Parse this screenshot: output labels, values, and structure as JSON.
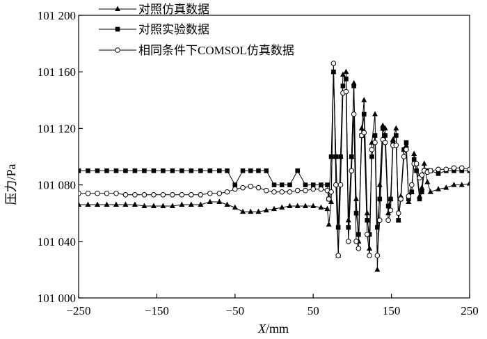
{
  "chart_data": {
    "type": "line",
    "title": "",
    "xlabel_italic": "X",
    "xlabel_unit": "/mm",
    "ylabel": "压力/Pa",
    "xlim": [
      -250,
      250
    ],
    "ylim": [
      101000,
      101200
    ],
    "xticks": [
      -250,
      -150,
      -50,
      50,
      150,
      250
    ],
    "xtick_labels": [
      "−250",
      "−150",
      "−50",
      "50",
      "150",
      "250"
    ],
    "yticks": [
      101000,
      101040,
      101080,
      101120,
      101160,
      101200
    ],
    "ytick_labels": [
      "101 000",
      "101 040",
      "101 080",
      "101 120",
      "101 160",
      "101 200"
    ],
    "grid": false,
    "legend_position": "top-left",
    "series": [
      {
        "name": "对照仿真数据",
        "marker": "triangle",
        "x": [
          -250,
          -238,
          -226,
          -214,
          -202,
          -190,
          -178,
          -166,
          -154,
          -142,
          -130,
          -118,
          -106,
          -94,
          -82,
          -70,
          -60,
          -50,
          -40,
          -30,
          -20,
          -10,
          0,
          10,
          20,
          30,
          40,
          50,
          60,
          68,
          70,
          73,
          76,
          79,
          82,
          85,
          88,
          92,
          95,
          99,
          102,
          105,
          108,
          112,
          115,
          119,
          122,
          125,
          129,
          132,
          135,
          139,
          142,
          146,
          149,
          152,
          156,
          159,
          162,
          166,
          169,
          172,
          176,
          179,
          182,
          186,
          189,
          192,
          196,
          200,
          210,
          220,
          230,
          240,
          250
        ],
        "y": [
          101066,
          101066,
          101066,
          101066,
          101066,
          101066,
          101066,
          101065,
          101065,
          101065,
          101065,
          101066,
          101066,
          101066,
          101068,
          101068,
          101066,
          101064,
          101061,
          101061,
          101061,
          101062,
          101063,
          101064,
          101065,
          101065,
          101065,
          101065,
          101064,
          101063,
          101052,
          101068,
          101160,
          101100,
          101030,
          101100,
          101158,
          101160,
          101055,
          101100,
          101152,
          101070,
          101040,
          101120,
          101140,
          101060,
          101035,
          101110,
          101130,
          101020,
          101080,
          101122,
          101120,
          101060,
          101070,
          101112,
          101120,
          101055,
          101072,
          101105,
          101108,
          101068,
          101075,
          101102,
          101095,
          101072,
          101078,
          101095,
          101082,
          101075,
          101077,
          101078,
          101080,
          101080,
          101081
        ]
      },
      {
        "name": "对照实验数据",
        "marker": "square",
        "x": [
          -250,
          -238,
          -226,
          -214,
          -202,
          -190,
          -178,
          -166,
          -154,
          -142,
          -130,
          -118,
          -106,
          -94,
          -82,
          -70,
          -60,
          -50,
          -40,
          -30,
          -20,
          -10,
          0,
          10,
          20,
          30,
          40,
          50,
          60,
          68,
          70,
          73,
          76,
          79,
          82,
          85,
          88,
          92,
          95,
          99,
          102,
          105,
          108,
          112,
          115,
          119,
          122,
          125,
          129,
          132,
          135,
          139,
          142,
          146,
          149,
          152,
          156,
          159,
          162,
          166,
          169,
          172,
          176,
          179,
          182,
          186,
          189,
          192,
          196,
          200,
          210,
          220,
          230,
          240,
          250
        ],
        "y": [
          101090,
          101090,
          101090,
          101090,
          101090,
          101090,
          101090,
          101090,
          101090,
          101090,
          101090,
          101090,
          101090,
          101090,
          101090,
          101090,
          101090,
          101080,
          101090,
          101090,
          101090,
          101090,
          101080,
          101080,
          101080,
          101090,
          101080,
          101080,
          101080,
          101080,
          101070,
          101100,
          101160,
          101100,
          101050,
          101100,
          101150,
          101155,
          101050,
          101100,
          101150,
          101060,
          101045,
          101115,
          101130,
          101055,
          101045,
          101100,
          101115,
          101050,
          101070,
          101120,
          101115,
          101065,
          101070,
          101110,
          101115,
          101055,
          101070,
          101105,
          101110,
          101070,
          101075,
          101098,
          101090,
          101070,
          101075,
          101090,
          101090,
          101090,
          101088,
          101090,
          101090,
          101090,
          101090
        ]
      },
      {
        "name": "相同条件下COMSOL仿真数据",
        "marker": "circle",
        "x": [
          -250,
          -238,
          -226,
          -214,
          -202,
          -190,
          -178,
          -166,
          -154,
          -142,
          -130,
          -118,
          -106,
          -94,
          -82,
          -70,
          -60,
          -50,
          -40,
          -30,
          -20,
          -10,
          0,
          10,
          20,
          30,
          40,
          50,
          60,
          68,
          70,
          73,
          76,
          79,
          82,
          85,
          88,
          92,
          95,
          99,
          102,
          105,
          108,
          112,
          115,
          119,
          122,
          125,
          129,
          132,
          135,
          139,
          142,
          146,
          149,
          152,
          156,
          159,
          162,
          166,
          169,
          172,
          176,
          179,
          182,
          186,
          189,
          192,
          196,
          200,
          210,
          220,
          230,
          240,
          250
        ],
        "y": [
          101074,
          101074,
          101074,
          101074,
          101074,
          101073,
          101073,
          101073,
          101073,
          101073,
          101073,
          101073,
          101073,
          101073,
          101074,
          101074,
          101075,
          101077,
          101078,
          101079,
          101078,
          101076,
          101075,
          101075,
          101075,
          101076,
          101076,
          101077,
          101077,
          101076,
          101070,
          101075,
          101166,
          101080,
          101030,
          101080,
          101145,
          101146,
          101040,
          101090,
          101130,
          101040,
          101035,
          101115,
          101117,
          101045,
          101030,
          101105,
          101110,
          101030,
          101055,
          101112,
          101110,
          101055,
          101062,
          101108,
          101108,
          101060,
          101070,
          101100,
          101105,
          101072,
          101080,
          101095,
          101095,
          101085,
          101087,
          101090,
          101089,
          101090,
          101091,
          101091,
          101092,
          101092,
          101091
        ]
      }
    ]
  }
}
